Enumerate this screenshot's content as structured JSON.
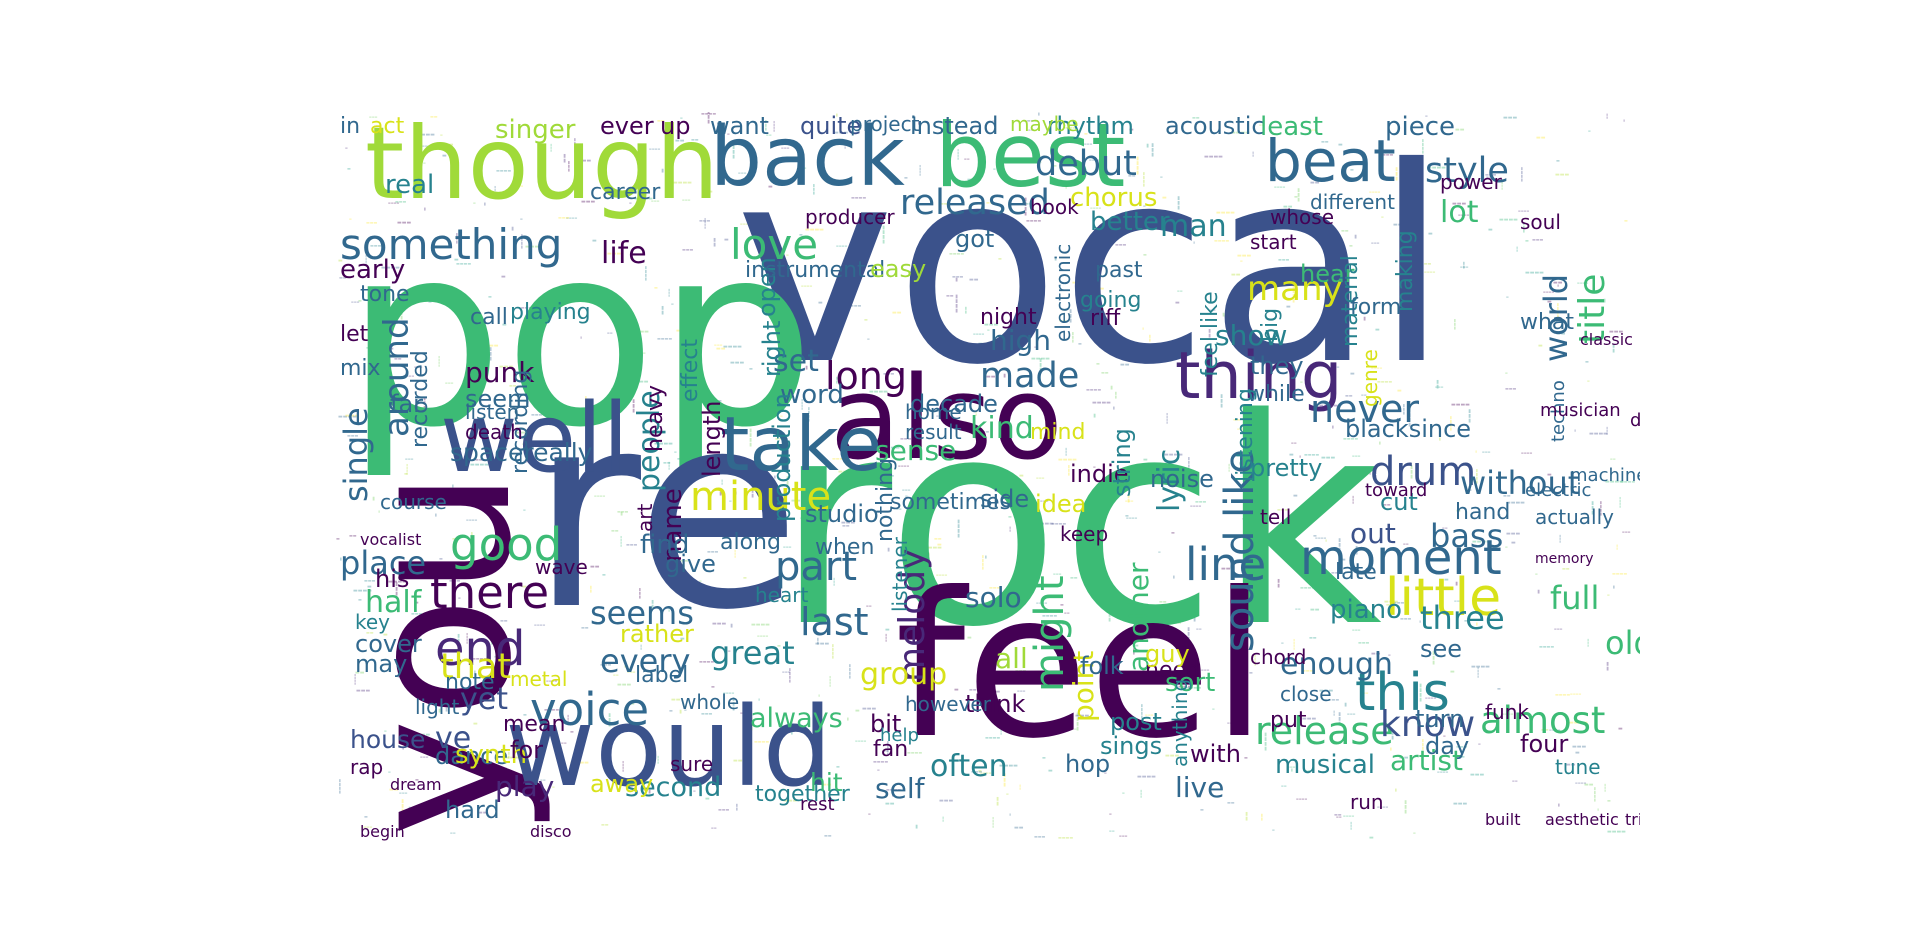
{
  "palette": [
    "#440154",
    "#482878",
    "#3e4a89",
    "#31688e",
    "#26828e",
    "#1f9e89",
    "#35b779",
    "#6ece58",
    "#b5de2b",
    "#fde725"
  ],
  "words": [
    {
      "text": "vocal",
      "color": "#3b528b"
    },
    {
      "text": "pop",
      "color": "#3cbb75"
    },
    {
      "text": "rock",
      "color": "#3cbb75"
    },
    {
      "text": "re",
      "color": "#3b528b"
    },
    {
      "text": "you",
      "color": "#440154"
    },
    {
      "text": "feel",
      "color": "#440154"
    },
    {
      "text": "would",
      "color": "#3b528b"
    },
    {
      "text": "also",
      "color": "#440154"
    },
    {
      "text": "though",
      "color": "#a0da39"
    },
    {
      "text": "best",
      "color": "#3cbb75"
    },
    {
      "text": "back",
      "color": "#31688e"
    },
    {
      "text": "well",
      "color": "#3b528b"
    },
    {
      "text": "take",
      "color": "#31688e"
    },
    {
      "text": "thing",
      "color": "#482878"
    },
    {
      "text": "something",
      "color": "#31688e"
    },
    {
      "text": "good",
      "color": "#3cbb75"
    },
    {
      "text": "sound like",
      "color": "#31688e"
    },
    {
      "text": "beat",
      "color": "#31688e"
    },
    {
      "text": "voice",
      "color": "#31688e"
    },
    {
      "text": "little",
      "color": "#d8e219"
    },
    {
      "text": "moment",
      "color": "#31688e"
    },
    {
      "text": "this",
      "color": "#26828e"
    },
    {
      "text": "end",
      "color": "#482878"
    },
    {
      "text": "there",
      "color": "#440154"
    },
    {
      "text": "line",
      "color": "#31688e"
    },
    {
      "text": "part",
      "color": "#31688e"
    },
    {
      "text": "last",
      "color": "#31688e"
    },
    {
      "text": "minute",
      "color": "#d8e219"
    },
    {
      "text": "love",
      "color": "#3cbb75"
    },
    {
      "text": "never",
      "color": "#31688e"
    },
    {
      "text": "drum",
      "color": "#3b528b"
    },
    {
      "text": "made",
      "color": "#31688e"
    },
    {
      "text": "long",
      "color": "#440154"
    },
    {
      "text": "release",
      "color": "#3cbb75"
    },
    {
      "text": "almost",
      "color": "#3cbb75"
    },
    {
      "text": "know",
      "color": "#3b528b"
    },
    {
      "text": "might",
      "color": "#3cbb75"
    },
    {
      "text": "melody",
      "color": "#482878"
    },
    {
      "text": "around",
      "color": "#31688e"
    },
    {
      "text": "single",
      "color": "#31688e"
    },
    {
      "text": "debut",
      "color": "#31688e"
    },
    {
      "text": "style",
      "color": "#31688e"
    },
    {
      "text": "released",
      "color": "#31688e"
    },
    {
      "text": "many",
      "color": "#d8e219"
    },
    {
      "text": "world",
      "color": "#31688e"
    },
    {
      "text": "title",
      "color": "#3cbb75"
    },
    {
      "text": "without",
      "color": "#31688e"
    },
    {
      "text": "bass",
      "color": "#31688e"
    },
    {
      "text": "full",
      "color": "#3cbb75"
    },
    {
      "text": "old",
      "color": "#3cbb75"
    },
    {
      "text": "three",
      "color": "#26828e"
    },
    {
      "text": "seems",
      "color": "#31688e"
    },
    {
      "text": "every",
      "color": "#31688e"
    },
    {
      "text": "great",
      "color": "#26828e"
    },
    {
      "text": "that",
      "color": "#d8e219"
    },
    {
      "text": "place",
      "color": "#31688e"
    },
    {
      "text": "half",
      "color": "#3cbb75"
    },
    {
      "text": "yet",
      "color": "#3b528b"
    },
    {
      "text": "ve",
      "color": "#3b528b"
    },
    {
      "text": "play",
      "color": "#482878"
    },
    {
      "text": "often",
      "color": "#26828e"
    },
    {
      "text": "second",
      "color": "#26828e"
    },
    {
      "text": "group",
      "color": "#d8e219"
    },
    {
      "text": "point",
      "color": "#d8e219"
    },
    {
      "text": "set",
      "color": "#31688e"
    },
    {
      "text": "life",
      "color": "#440154"
    },
    {
      "text": "punk",
      "color": "#440154"
    },
    {
      "text": "kind",
      "color": "#3cbb75"
    },
    {
      "text": "sense",
      "color": "#3cbb75"
    },
    {
      "text": "another",
      "color": "#3cbb75"
    },
    {
      "text": "lyric",
      "color": "#26828e"
    },
    {
      "text": "enough",
      "color": "#31688e"
    },
    {
      "text": "artist",
      "color": "#3cbb75"
    },
    {
      "text": "live",
      "color": "#31688e"
    },
    {
      "text": "self",
      "color": "#31688e"
    },
    {
      "text": "together",
      "color": "#26828e"
    },
    {
      "text": "dance",
      "color": "#31688e"
    },
    {
      "text": "house",
      "color": "#3b528b"
    },
    {
      "text": "always",
      "color": "#3cbb75"
    },
    {
      "text": "musical",
      "color": "#26828e"
    },
    {
      "text": "blacksince",
      "color": "#31688e"
    },
    {
      "text": "spacereally",
      "color": "#31688e"
    },
    {
      "text": "show",
      "color": "#26828e"
    },
    {
      "text": "singer",
      "color": "#a0da39"
    },
    {
      "text": "instead",
      "color": "#31688e"
    },
    {
      "text": "rhythm",
      "color": "#26828e"
    },
    {
      "text": "acoustic",
      "color": "#31688e"
    },
    {
      "text": "least",
      "color": "#3cbb75"
    },
    {
      "text": "piece",
      "color": "#31688e"
    },
    {
      "text": "want",
      "color": "#31688e"
    },
    {
      "text": "ever",
      "color": "#440154"
    },
    {
      "text": "up",
      "color": "#440154"
    },
    {
      "text": "quite",
      "color": "#3b528b"
    },
    {
      "text": "project",
      "color": "#31688e"
    },
    {
      "text": "maybe",
      "color": "#a0da39"
    },
    {
      "text": "man",
      "color": "#26828e"
    },
    {
      "text": "chorus",
      "color": "#d8e219"
    },
    {
      "text": "better",
      "color": "#26828e"
    },
    {
      "text": "lot",
      "color": "#3cbb75"
    },
    {
      "text": "different",
      "color": "#31688e"
    },
    {
      "text": "early",
      "color": "#440154"
    },
    {
      "text": "tone",
      "color": "#31688e"
    },
    {
      "text": "let",
      "color": "#440154"
    },
    {
      "text": "mix",
      "color": "#31688e"
    },
    {
      "text": "far",
      "color": "#31688e"
    },
    {
      "text": "recorded",
      "color": "#31688e"
    },
    {
      "text": "recording",
      "color": "#31688e"
    },
    {
      "text": "seem",
      "color": "#31688e"
    },
    {
      "text": "call",
      "color": "#31688e"
    },
    {
      "text": "people",
      "color": "#26828e"
    },
    {
      "text": "word",
      "color": "#31688e"
    },
    {
      "text": "open",
      "color": "#26828e"
    },
    {
      "text": "production",
      "color": "#26828e"
    },
    {
      "text": "right",
      "color": "#26828e"
    },
    {
      "text": "high",
      "color": "#31688e"
    },
    {
      "text": "going",
      "color": "#26828e"
    },
    {
      "text": "past",
      "color": "#31688e"
    },
    {
      "text": "riff",
      "color": "#440154"
    },
    {
      "text": "night",
      "color": "#440154"
    },
    {
      "text": "decade",
      "color": "#31688e"
    },
    {
      "text": "got",
      "color": "#31688e"
    },
    {
      "text": "feel like",
      "color": "#26828e"
    },
    {
      "text": "big",
      "color": "#26828e"
    },
    {
      "text": "they",
      "color": "#31688e"
    },
    {
      "text": "while",
      "color": "#31688e"
    },
    {
      "text": "listening",
      "color": "#26828e"
    },
    {
      "text": "pretty",
      "color": "#26828e"
    },
    {
      "text": "indie",
      "color": "#440154"
    },
    {
      "text": "noise",
      "color": "#31688e"
    },
    {
      "text": "idea",
      "color": "#d8e219"
    },
    {
      "text": "side",
      "color": "#31688e"
    },
    {
      "text": "solo",
      "color": "#31688e"
    },
    {
      "text": "all",
      "color": "#a0da39"
    },
    {
      "text": "cut",
      "color": "#26828e"
    },
    {
      "text": "late",
      "color": "#31688e"
    },
    {
      "text": "out",
      "color": "#3b528b"
    },
    {
      "text": "piano",
      "color": "#26828e"
    },
    {
      "text": "sort",
      "color": "#3cbb75"
    },
    {
      "text": "folk",
      "color": "#31688e"
    },
    {
      "text": "think",
      "color": "#440154"
    },
    {
      "text": "bit",
      "color": "#440154"
    },
    {
      "text": "fan",
      "color": "#440154"
    },
    {
      "text": "hit",
      "color": "#3cbb75"
    },
    {
      "text": "post",
      "color": "#26828e"
    },
    {
      "text": "sings",
      "color": "#26828e"
    },
    {
      "text": "with",
      "color": "#440154"
    },
    {
      "text": "anything",
      "color": "#26828e"
    },
    {
      "text": "turn",
      "color": "#31688e"
    },
    {
      "text": "day",
      "color": "#31688e"
    },
    {
      "text": "see",
      "color": "#31688e"
    },
    {
      "text": "four",
      "color": "#440154"
    },
    {
      "text": "tune",
      "color": "#26828e"
    },
    {
      "text": "actually",
      "color": "#31688e"
    },
    {
      "text": "hand",
      "color": "#31688e"
    },
    {
      "text": "name",
      "color": "#440154"
    },
    {
      "text": "find",
      "color": "#31688e"
    },
    {
      "text": "give",
      "color": "#31688e"
    },
    {
      "text": "rather",
      "color": "#d8e219"
    },
    {
      "text": "label",
      "color": "#31688e"
    },
    {
      "text": "cover",
      "color": "#31688e"
    },
    {
      "text": "may",
      "color": "#31688e"
    },
    {
      "text": "note",
      "color": "#31688e"
    },
    {
      "text": "light",
      "color": "#31688e"
    },
    {
      "text": "rap",
      "color": "#440154"
    },
    {
      "text": "hard",
      "color": "#31688e"
    },
    {
      "text": "synth",
      "color": "#d8e219"
    },
    {
      "text": "for",
      "color": "#440154"
    },
    {
      "text": "course",
      "color": "#31688e"
    },
    {
      "text": "away",
      "color": "#d8e219"
    },
    {
      "text": "when",
      "color": "#31688e"
    },
    {
      "text": "along",
      "color": "#31688e"
    },
    {
      "text": "studio",
      "color": "#31688e"
    },
    {
      "text": "sometimes",
      "color": "#31688e"
    },
    {
      "text": "heart",
      "color": "#26828e"
    },
    {
      "text": "however",
      "color": "#31688e"
    },
    {
      "text": "whole",
      "color": "#31688e"
    },
    {
      "text": "instrumental",
      "color": "#31688e"
    },
    {
      "text": "easy",
      "color": "#a0da39"
    },
    {
      "text": "hear",
      "color": "#3cbb75"
    },
    {
      "text": "material",
      "color": "#26828e"
    },
    {
      "text": "making",
      "color": "#26828e"
    },
    {
      "text": "form",
      "color": "#31688e"
    },
    {
      "text": "what",
      "color": "#31688e"
    },
    {
      "text": "genre",
      "color": "#d8e219"
    },
    {
      "text": "career",
      "color": "#31688e"
    },
    {
      "text": "playing",
      "color": "#26828e"
    },
    {
      "text": "real",
      "color": "#26828e"
    },
    {
      "text": "act",
      "color": "#d8e219"
    },
    {
      "text": "in",
      "color": "#31688e"
    },
    {
      "text": "his",
      "color": "#440154"
    },
    {
      "text": "key",
      "color": "#26828e"
    },
    {
      "text": "metal",
      "color": "#d8e219"
    },
    {
      "text": "mind",
      "color": "#d8e219"
    },
    {
      "text": "keep",
      "color": "#440154"
    },
    {
      "text": "string",
      "color": "#26828e"
    },
    {
      "text": "effect",
      "color": "#26828e"
    },
    {
      "text": "length",
      "color": "#440154"
    },
    {
      "text": "heavy",
      "color": "#440154"
    },
    {
      "text": "art",
      "color": "#440154"
    },
    {
      "text": "nothing",
      "color": "#31688e"
    },
    {
      "text": "listener",
      "color": "#26828e"
    },
    {
      "text": "need",
      "color": "#440154"
    },
    {
      "text": "hop",
      "color": "#31688e"
    },
    {
      "text": "guy",
      "color": "#d8e219"
    },
    {
      "text": "chord",
      "color": "#440154"
    },
    {
      "text": "close",
      "color": "#31688e"
    },
    {
      "text": "put",
      "color": "#440154"
    },
    {
      "text": "funk",
      "color": "#440154"
    },
    {
      "text": "run",
      "color": "#440154"
    },
    {
      "text": "rest",
      "color": "#440154"
    },
    {
      "text": "help",
      "color": "#26828e"
    },
    {
      "text": "mean",
      "color": "#440154"
    },
    {
      "text": "sure",
      "color": "#440154"
    },
    {
      "text": "home",
      "color": "#31688e"
    },
    {
      "text": "result",
      "color": "#31688e"
    },
    {
      "text": "death",
      "color": "#440154"
    },
    {
      "text": "listen",
      "color": "#31688e"
    },
    {
      "text": "power",
      "color": "#440154"
    },
    {
      "text": "start",
      "color": "#440154"
    },
    {
      "text": "whose",
      "color": "#440154"
    },
    {
      "text": "soul",
      "color": "#440154"
    },
    {
      "text": "hook",
      "color": "#440154"
    },
    {
      "text": "producer",
      "color": "#440154"
    },
    {
      "text": "electronic",
      "color": "#31688e"
    },
    {
      "text": "techno",
      "color": "#31688e"
    },
    {
      "text": "musician",
      "color": "#440154"
    },
    {
      "text": "dead",
      "color": "#440154"
    },
    {
      "text": "tell",
      "color": "#440154"
    },
    {
      "text": "wave",
      "color": "#440154"
    },
    {
      "text": "machine",
      "color": "#31688e"
    },
    {
      "text": "electric",
      "color": "#31688e"
    },
    {
      "text": "toward",
      "color": "#440154"
    },
    {
      "text": "vocalist",
      "color": "#440154"
    },
    {
      "text": "memory",
      "color": "#440154"
    },
    {
      "text": "classic",
      "color": "#440154"
    },
    {
      "text": "dream",
      "color": "#440154"
    },
    {
      "text": "disco",
      "color": "#440154"
    },
    {
      "text": "begin",
      "color": "#440154"
    },
    {
      "text": "trio",
      "color": "#440154"
    },
    {
      "text": "aesthetic",
      "color": "#440154"
    },
    {
      "text": "built",
      "color": "#440154"
    }
  ]
}
